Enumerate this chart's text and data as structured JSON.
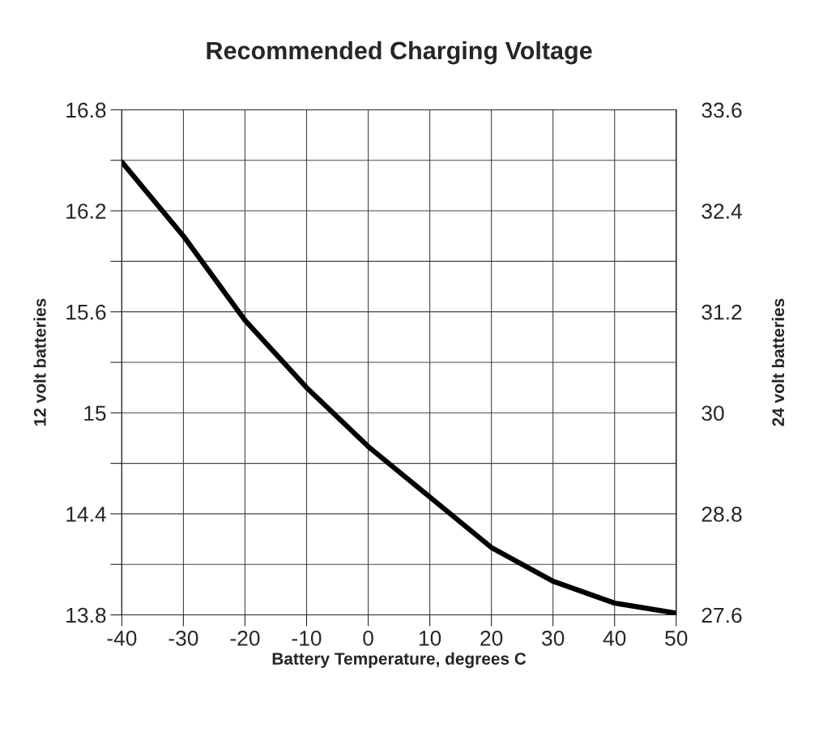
{
  "chart_data": {
    "type": "line",
    "title": "Recommended Charging Voltage",
    "xlabel": "Battery Temperature, degrees C",
    "ylabel": "12 volt batteries",
    "y2label": "24 volt batteries",
    "x": [
      -40,
      -30,
      -20,
      -15,
      -10,
      0,
      10,
      20,
      30,
      40,
      50
    ],
    "series": [
      {
        "color": "#000000",
        "values": [
          16.49,
          16.05,
          15.55,
          15.35,
          15.15,
          14.8,
          14.5,
          14.2,
          14.0,
          13.87,
          13.81
        ]
      }
    ],
    "xlim": [
      -40,
      50
    ],
    "xticks": [
      -40,
      -30,
      -20,
      -10,
      0,
      10,
      20,
      30,
      40,
      50
    ],
    "ylim": [
      13.8,
      16.8
    ],
    "yticks": [
      13.8,
      {
        "value": 14.1,
        "label": null
      },
      14.4,
      {
        "value": 14.7,
        "label": null
      },
      15,
      {
        "value": 15.3,
        "label": null
      },
      15.6,
      {
        "value": 15.9,
        "label": null
      },
      16.2,
      {
        "value": 16.5,
        "label": null
      },
      16.8
    ],
    "y2lim": [
      27.6,
      33.6
    ],
    "y2ticks": [
      27.6,
      28.8,
      30,
      31.2,
      32.4,
      33.6
    ],
    "grid": true,
    "legend": false,
    "marker": "none",
    "line_style": "solid"
  }
}
